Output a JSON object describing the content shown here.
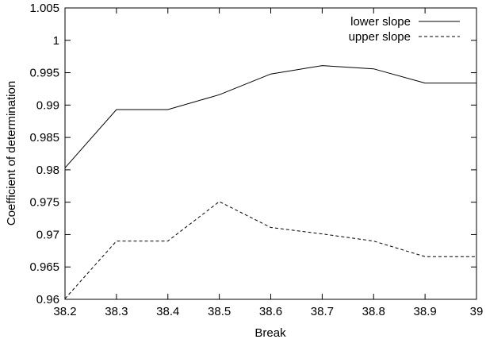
{
  "chart_data": {
    "type": "line",
    "xlabel": "Break",
    "ylabel": "Coefficient of determination",
    "xlim": [
      38.2,
      39
    ],
    "ylim": [
      0.96,
      1.005
    ],
    "x_ticks": [
      "38.2",
      "38.3",
      "38.4",
      "38.5",
      "38.6",
      "38.7",
      "38.8",
      "38.9",
      "39"
    ],
    "y_ticks": [
      "0.96",
      "0.965",
      "0.97",
      "0.975",
      "0.98",
      "0.985",
      "0.99",
      "0.995",
      "1",
      "1.005"
    ],
    "grid": false,
    "legend_position": "top-right",
    "x": [
      38.2,
      38.3,
      38.4,
      38.5,
      38.6,
      38.7,
      38.8,
      38.9,
      39.0
    ],
    "series": [
      {
        "name": "lower slope",
        "style": "solid",
        "values": [
          0.9803,
          0.9893,
          0.9893,
          0.9916,
          0.9948,
          0.9961,
          0.9956,
          0.9934,
          0.9934
        ]
      },
      {
        "name": "upper slope",
        "style": "dashed",
        "values": [
          0.9601,
          0.969,
          0.969,
          0.9751,
          0.9711,
          0.9701,
          0.969,
          0.9666,
          0.9666
        ]
      }
    ]
  }
}
